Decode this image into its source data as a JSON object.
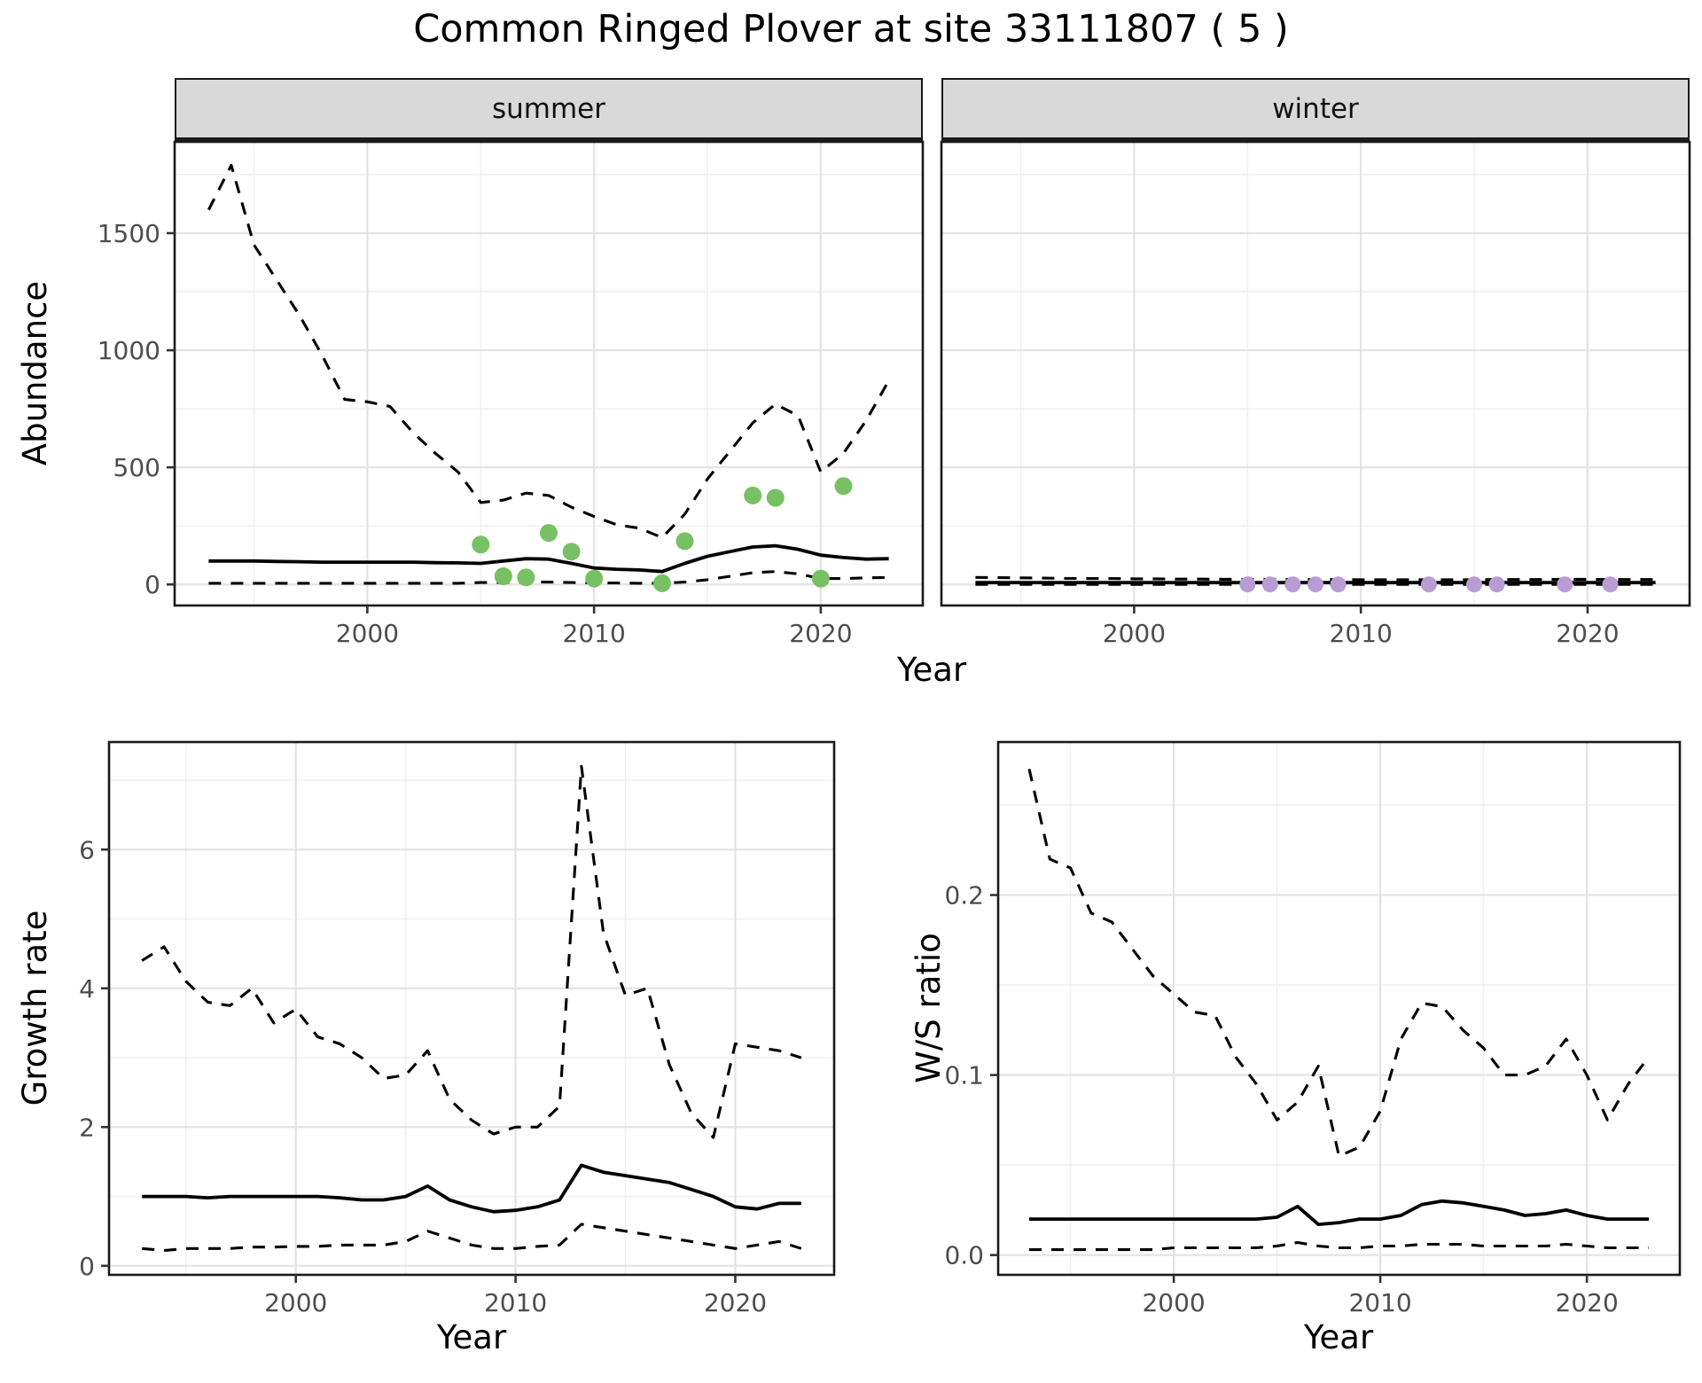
{
  "title": "Common Ringed Plover at site 33111807 ( 5 )",
  "colors": {
    "summer_points": "#77C063",
    "winter_points": "#B89DD4",
    "line": "#000000",
    "strip_bg": "#D9D9D9",
    "grid_major": "#E3E3E3",
    "grid_minor": "#F1F1F1",
    "tick_text": "#4D4D4D"
  },
  "chart_data": [
    {
      "id": "abundance-summer",
      "type": "line",
      "facet": "summer",
      "xlabel": "Year",
      "ylabel": "Abundance",
      "xlim": [
        1991.5,
        2024.5
      ],
      "ylim": [
        -90,
        1890
      ],
      "xticks": [
        2000,
        2010,
        2020
      ],
      "xtick_labels": [
        "2000",
        "2010",
        "2020"
      ],
      "xticks_minor": [
        1995,
        2005,
        2015
      ],
      "yticks": [
        0,
        500,
        1000,
        1500
      ],
      "ytick_labels": [
        "0",
        "500",
        "1000",
        "1500"
      ],
      "yticks_minor": [
        250,
        750,
        1250,
        1750
      ],
      "x": [
        1993,
        1994,
        1995,
        1996,
        1997,
        1998,
        1999,
        2000,
        2001,
        2002,
        2003,
        2004,
        2005,
        2006,
        2007,
        2008,
        2009,
        2010,
        2011,
        2012,
        2013,
        2014,
        2015,
        2016,
        2017,
        2018,
        2019,
        2020,
        2021,
        2022,
        2023
      ],
      "series": [
        {
          "name": "upper-ci",
          "style": "dashed",
          "values": [
            1600,
            1790,
            1450,
            1300,
            1150,
            980,
            790,
            780,
            760,
            650,
            560,
            480,
            350,
            360,
            390,
            380,
            330,
            290,
            255,
            240,
            200,
            300,
            450,
            570,
            690,
            770,
            720,
            480,
            560,
            700,
            870
          ]
        },
        {
          "name": "median",
          "style": "solid",
          "values": [
            100,
            100,
            100,
            98,
            97,
            95,
            95,
            95,
            95,
            95,
            93,
            92,
            90,
            100,
            110,
            108,
            90,
            70,
            65,
            62,
            55,
            90,
            120,
            140,
            160,
            165,
            150,
            125,
            115,
            108,
            110
          ]
        },
        {
          "name": "lower-ci",
          "style": "dashed",
          "values": [
            5,
            5,
            5,
            5,
            5,
            5,
            5,
            5,
            5,
            5,
            5,
            5,
            8,
            8,
            10,
            10,
            8,
            6,
            6,
            5,
            5,
            10,
            20,
            35,
            50,
            55,
            45,
            25,
            25,
            28,
            30
          ]
        }
      ],
      "points": {
        "name": "summer-observation-point",
        "color_key": "summer_points",
        "radius": 10,
        "data": [
          [
            2005,
            170
          ],
          [
            2006,
            35
          ],
          [
            2007,
            30
          ],
          [
            2008,
            220
          ],
          [
            2009,
            140
          ],
          [
            2010,
            25
          ],
          [
            2013,
            5
          ],
          [
            2014,
            185
          ],
          [
            2017,
            380
          ],
          [
            2018,
            370
          ],
          [
            2020,
            25
          ],
          [
            2021,
            420
          ]
        ]
      }
    },
    {
      "id": "abundance-winter",
      "type": "line",
      "facet": "winter",
      "xlabel": "Year",
      "ylabel": "Abundance",
      "xlim": [
        1991.5,
        2024.5
      ],
      "ylim": [
        -90,
        1890
      ],
      "xticks": [
        2000,
        2010,
        2020
      ],
      "xtick_labels": [
        "2000",
        "2010",
        "2020"
      ],
      "xticks_minor": [
        1995,
        2005,
        2015
      ],
      "yticks": [
        0,
        500,
        1000,
        1500
      ],
      "ytick_labels": [
        "0",
        "500",
        "1000",
        "1500"
      ],
      "yticks_minor": [
        250,
        750,
        1250,
        1750
      ],
      "x": [
        1993,
        1994,
        1995,
        1996,
        1997,
        1998,
        1999,
        2000,
        2001,
        2002,
        2003,
        2004,
        2005,
        2006,
        2007,
        2008,
        2009,
        2010,
        2011,
        2012,
        2013,
        2014,
        2015,
        2016,
        2017,
        2018,
        2019,
        2020,
        2021,
        2022,
        2023
      ],
      "series": [
        {
          "name": "upper-ci",
          "style": "dashed",
          "values": [
            30,
            29,
            28,
            27,
            26,
            25,
            25,
            24,
            24,
            23,
            23,
            22,
            22,
            22,
            21,
            21,
            21,
            20,
            20,
            20,
            20,
            20,
            20,
            21,
            21,
            21,
            22,
            22,
            21,
            21,
            21
          ]
        },
        {
          "name": "median",
          "style": "solid",
          "values": [
            8,
            8,
            8,
            8,
            8,
            8,
            8,
            8,
            8,
            8,
            8,
            8,
            8,
            8,
            8,
            8,
            8,
            8,
            8,
            8,
            8,
            8,
            8,
            8,
            8,
            8,
            8,
            8,
            8,
            8,
            8
          ]
        },
        {
          "name": "lower-ci",
          "style": "dashed",
          "values": [
            0,
            0,
            0,
            0,
            0,
            0,
            0,
            0,
            0,
            0,
            0,
            0,
            0,
            0,
            0,
            0,
            0,
            0,
            0,
            0,
            0,
            0,
            0,
            0,
            0,
            0,
            0,
            0,
            0,
            0,
            0
          ]
        }
      ],
      "points": {
        "name": "winter-observation-point",
        "color_key": "winter_points",
        "radius": 9,
        "data": [
          [
            2005,
            0
          ],
          [
            2006,
            0
          ],
          [
            2007,
            0
          ],
          [
            2008,
            0
          ],
          [
            2009,
            0
          ],
          [
            2013,
            0
          ],
          [
            2015,
            0
          ],
          [
            2016,
            0
          ],
          [
            2019,
            0
          ],
          [
            2021,
            0
          ]
        ]
      }
    },
    {
      "id": "growth-rate",
      "type": "line",
      "facet": "",
      "xlabel": "Year",
      "ylabel": "Growth rate",
      "xlim": [
        1991.5,
        2024.5
      ],
      "ylim": [
        -0.13,
        7.55
      ],
      "xticks": [
        2000,
        2010,
        2020
      ],
      "xtick_labels": [
        "2000",
        "2010",
        "2020"
      ],
      "xticks_minor": [
        1995,
        2005,
        2015
      ],
      "yticks": [
        0,
        2,
        4,
        6
      ],
      "ytick_labels": [
        "0",
        "2",
        "4",
        "6"
      ],
      "yticks_minor": [
        1,
        3,
        5,
        7
      ],
      "x": [
        1993,
        1994,
        1995,
        1996,
        1997,
        1998,
        1999,
        2000,
        2001,
        2002,
        2003,
        2004,
        2005,
        2006,
        2007,
        2008,
        2009,
        2010,
        2011,
        2012,
        2013,
        2014,
        2015,
        2016,
        2017,
        2018,
        2019,
        2020,
        2021,
        2022,
        2023
      ],
      "series": [
        {
          "name": "upper-ci",
          "style": "dashed",
          "values": [
            4.4,
            4.6,
            4.1,
            3.8,
            3.75,
            4.0,
            3.5,
            3.7,
            3.3,
            3.2,
            3.0,
            2.7,
            2.75,
            3.1,
            2.4,
            2.1,
            1.9,
            2.0,
            2.0,
            2.3,
            7.2,
            4.8,
            3.9,
            4.0,
            2.9,
            2.2,
            1.85,
            3.2,
            3.15,
            3.1,
            3.0
          ]
        },
        {
          "name": "median",
          "style": "solid",
          "values": [
            1.0,
            1.0,
            1.0,
            0.98,
            1.0,
            1.0,
            1.0,
            1.0,
            1.0,
            0.98,
            0.95,
            0.95,
            1.0,
            1.15,
            0.95,
            0.85,
            0.78,
            0.8,
            0.85,
            0.95,
            1.45,
            1.35,
            1.3,
            1.25,
            1.2,
            1.1,
            1.0,
            0.85,
            0.82,
            0.9,
            0.9
          ]
        },
        {
          "name": "lower-ci",
          "style": "dashed",
          "values": [
            0.25,
            0.22,
            0.25,
            0.25,
            0.25,
            0.27,
            0.27,
            0.28,
            0.28,
            0.3,
            0.3,
            0.3,
            0.35,
            0.5,
            0.4,
            0.3,
            0.25,
            0.25,
            0.28,
            0.3,
            0.6,
            0.55,
            0.5,
            0.45,
            0.4,
            0.35,
            0.3,
            0.25,
            0.3,
            0.35,
            0.25
          ]
        }
      ],
      "points": null
    },
    {
      "id": "ws-ratio",
      "type": "line",
      "facet": "",
      "xlabel": "Year",
      "ylabel": "W/S ratio",
      "xlim": [
        1991.5,
        2024.5
      ],
      "ylim": [
        -0.011,
        0.285
      ],
      "xticks": [
        2000,
        2010,
        2020
      ],
      "xtick_labels": [
        "2000",
        "2010",
        "2020"
      ],
      "xticks_minor": [
        1995,
        2005,
        2015
      ],
      "yticks": [
        0,
        0.1,
        0.2
      ],
      "ytick_labels": [
        "0.0",
        "0.1",
        "0.2"
      ],
      "yticks_minor": [
        0.05,
        0.15,
        0.25
      ],
      "x": [
        1993,
        1994,
        1995,
        1996,
        1997,
        1998,
        1999,
        2000,
        2001,
        2002,
        2003,
        2004,
        2005,
        2006,
        2007,
        2008,
        2009,
        2010,
        2011,
        2012,
        2013,
        2014,
        2015,
        2016,
        2017,
        2018,
        2019,
        2020,
        2021,
        2022,
        2023
      ],
      "series": [
        {
          "name": "upper-ci",
          "style": "dashed",
          "values": [
            0.27,
            0.22,
            0.215,
            0.19,
            0.185,
            0.17,
            0.155,
            0.145,
            0.135,
            0.133,
            0.11,
            0.095,
            0.075,
            0.085,
            0.105,
            0.055,
            0.06,
            0.08,
            0.12,
            0.14,
            0.138,
            0.125,
            0.115,
            0.1,
            0.1,
            0.105,
            0.12,
            0.1,
            0.075,
            0.095,
            0.11
          ]
        },
        {
          "name": "median",
          "style": "solid",
          "values": [
            0.02,
            0.02,
            0.02,
            0.02,
            0.02,
            0.02,
            0.02,
            0.02,
            0.02,
            0.02,
            0.02,
            0.02,
            0.021,
            0.027,
            0.017,
            0.018,
            0.02,
            0.02,
            0.022,
            0.028,
            0.03,
            0.029,
            0.027,
            0.025,
            0.022,
            0.023,
            0.025,
            0.022,
            0.02,
            0.02,
            0.02
          ]
        },
        {
          "name": "lower-ci",
          "style": "dashed",
          "values": [
            0.003,
            0.003,
            0.003,
            0.003,
            0.003,
            0.003,
            0.003,
            0.004,
            0.004,
            0.004,
            0.004,
            0.004,
            0.005,
            0.007,
            0.005,
            0.004,
            0.004,
            0.005,
            0.005,
            0.006,
            0.006,
            0.006,
            0.005,
            0.005,
            0.005,
            0.005,
            0.006,
            0.005,
            0.004,
            0.004,
            0.004
          ]
        }
      ],
      "points": null
    }
  ]
}
